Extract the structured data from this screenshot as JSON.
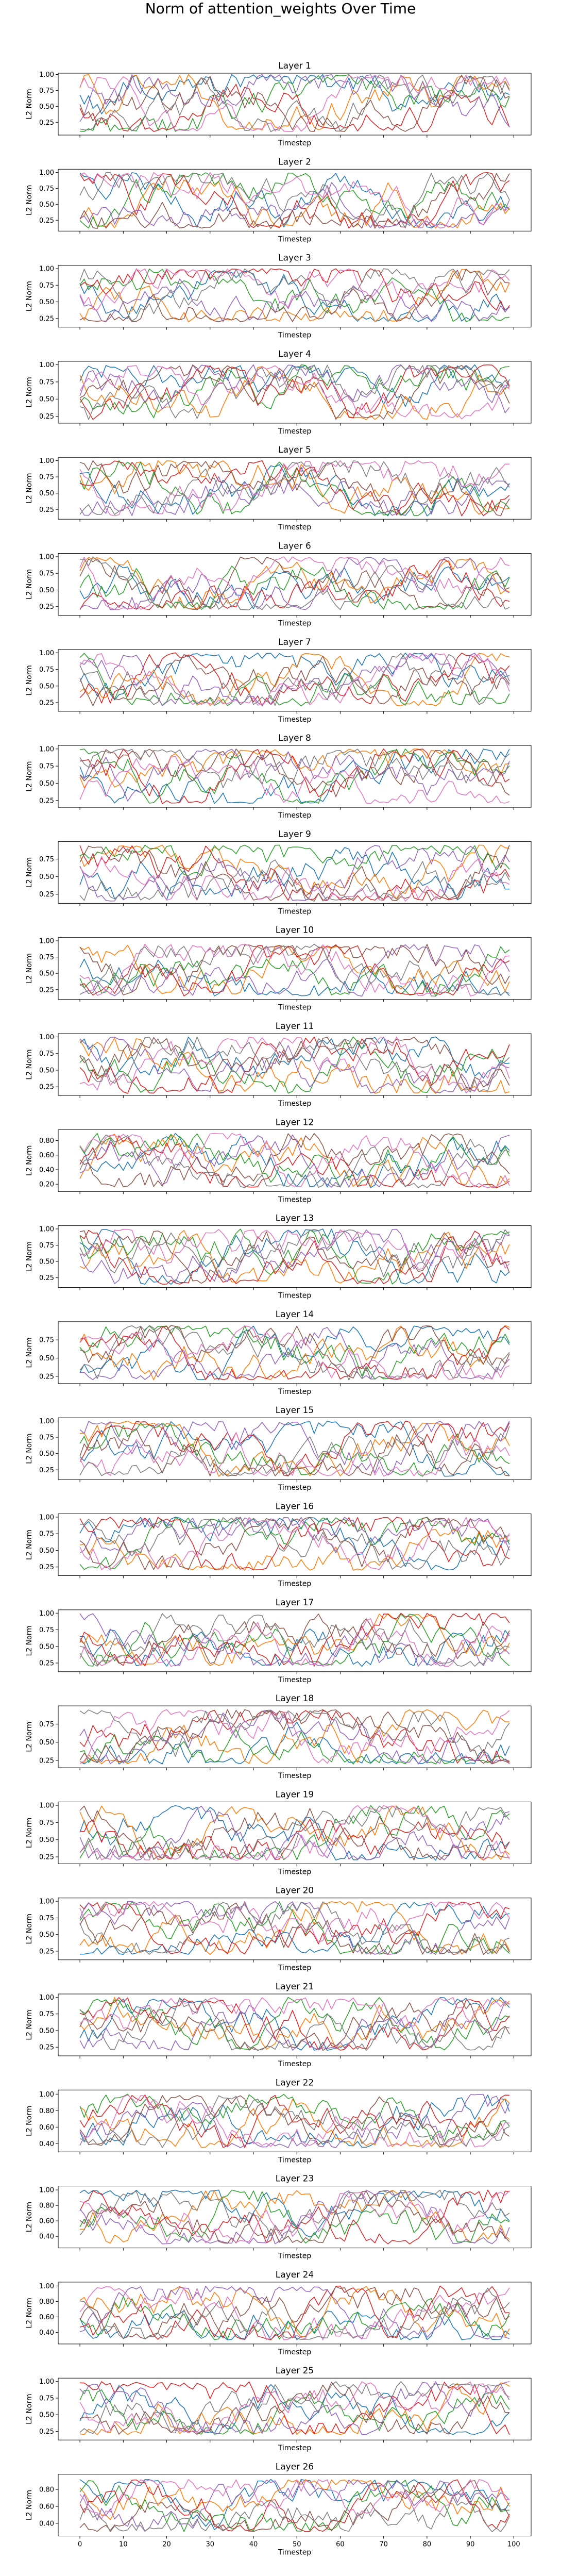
{
  "figure": {
    "title": "Norm of attention_weights Over Time"
  },
  "colors": [
    "#1f77b4",
    "#ff7f0e",
    "#2ca02c",
    "#d62728",
    "#9467bd",
    "#8c564b",
    "#e377c2",
    "#7f7f7f"
  ],
  "chart_data": {
    "type": "line",
    "subplots": 26,
    "series_per_subplot": 8,
    "points_per_series": 100,
    "x_range": [
      0,
      99
    ],
    "xlim": [
      -5,
      104
    ],
    "xticks": [
      0,
      10,
      20,
      30,
      40,
      50,
      60,
      70,
      80,
      90,
      100
    ],
    "xlabel": "Timestep",
    "ylabel": "L2 Norm",
    "panels": [
      {
        "title": "Layer 1",
        "ylim": [
          0.05,
          1.02
        ],
        "yticks": [
          0.25,
          0.5,
          0.75,
          1.0
        ],
        "band": [
          0.1,
          1.0
        ],
        "xlabel": "Timestep"
      },
      {
        "title": "Layer 2",
        "ylim": [
          0.08,
          1.05
        ],
        "yticks": [
          0.25,
          0.5,
          0.75,
          1.0
        ],
        "band": [
          0.12,
          1.0
        ],
        "xlabel": "Timestep"
      },
      {
        "title": "Layer 3",
        "ylim": [
          0.12,
          1.05
        ],
        "yticks": [
          0.25,
          0.5,
          0.75,
          1.0
        ],
        "band": [
          0.2,
          1.0
        ],
        "xlabel": "Timestep"
      },
      {
        "title": "Layer 4",
        "ylim": [
          0.15,
          1.05
        ],
        "yticks": [
          0.25,
          0.5,
          0.75,
          1.0
        ],
        "band": [
          0.2,
          1.0
        ],
        "xlabel": "Timestep"
      },
      {
        "title": "Layer 5",
        "ylim": [
          0.1,
          1.05
        ],
        "yticks": [
          0.25,
          0.5,
          0.75,
          1.0
        ],
        "band": [
          0.15,
          1.0
        ],
        "xlabel": "Timestep"
      },
      {
        "title": "Layer 6",
        "ylim": [
          0.12,
          1.05
        ],
        "yticks": [
          0.25,
          0.5,
          0.75,
          1.0
        ],
        "band": [
          0.2,
          1.0
        ],
        "xlabel": "Timestep"
      },
      {
        "title": "Layer 7",
        "ylim": [
          0.12,
          1.05
        ],
        "yticks": [
          0.25,
          0.5,
          0.75,
          1.0
        ],
        "band": [
          0.2,
          1.0
        ],
        "xlabel": "Timestep"
      },
      {
        "title": "Layer 8",
        "ylim": [
          0.15,
          1.05
        ],
        "yticks": [
          0.25,
          0.5,
          0.75,
          1.0
        ],
        "band": [
          0.2,
          1.0
        ],
        "xlabel": "Timestep"
      },
      {
        "title": "Layer 9",
        "ylim": [
          0.12,
          1.0
        ],
        "yticks": [
          0.25,
          0.5,
          0.75
        ],
        "band": [
          0.15,
          0.95
        ],
        "xlabel": "Timestep"
      },
      {
        "title": "Layer 10",
        "ylim": [
          0.1,
          1.05
        ],
        "yticks": [
          0.25,
          0.5,
          0.75,
          1.0
        ],
        "band": [
          0.15,
          0.95
        ],
        "xlabel": "Timestep"
      },
      {
        "title": "Layer 11",
        "ylim": [
          0.12,
          1.05
        ],
        "yticks": [
          0.25,
          0.5,
          0.75,
          1.0
        ],
        "band": [
          0.15,
          1.0
        ],
        "xlabel": "Timestep"
      },
      {
        "title": "Layer 12",
        "ylim": [
          0.1,
          0.95
        ],
        "yticks": [
          0.2,
          0.4,
          0.6,
          0.8
        ],
        "band": [
          0.15,
          0.9
        ],
        "xlabel": "Timestep"
      },
      {
        "title": "Layer 13",
        "ylim": [
          0.1,
          1.05
        ],
        "yticks": [
          0.25,
          0.5,
          0.75,
          1.0
        ],
        "band": [
          0.15,
          1.0
        ],
        "xlabel": "Timestep"
      },
      {
        "title": "Layer 14",
        "ylim": [
          0.15,
          1.0
        ],
        "yticks": [
          0.25,
          0.5,
          0.75
        ],
        "band": [
          0.2,
          0.95
        ],
        "xlabel": "Timestep"
      },
      {
        "title": "Layer 15",
        "ylim": [
          0.1,
          1.05
        ],
        "yticks": [
          0.25,
          0.5,
          0.75,
          1.0
        ],
        "band": [
          0.15,
          1.0
        ],
        "xlabel": "Timestep"
      },
      {
        "title": "Layer 16",
        "ylim": [
          0.12,
          1.05
        ],
        "yticks": [
          0.25,
          0.5,
          0.75,
          1.0
        ],
        "band": [
          0.2,
          1.0
        ],
        "xlabel": "Timestep"
      },
      {
        "title": "Layer 17",
        "ylim": [
          0.12,
          1.05
        ],
        "yticks": [
          0.25,
          0.5,
          0.75,
          1.0
        ],
        "band": [
          0.2,
          1.0
        ],
        "xlabel": "Timestep"
      },
      {
        "title": "Layer 18",
        "ylim": [
          0.15,
          1.0
        ],
        "yticks": [
          0.25,
          0.5,
          0.75
        ],
        "band": [
          0.2,
          0.95
        ],
        "xlabel": "Timestep"
      },
      {
        "title": "Layer 19",
        "ylim": [
          0.15,
          1.05
        ],
        "yticks": [
          0.25,
          0.5,
          0.75,
          1.0
        ],
        "band": [
          0.2,
          1.0
        ],
        "xlabel": "Timestep"
      },
      {
        "title": "Layer 20",
        "ylim": [
          0.12,
          1.05
        ],
        "yticks": [
          0.25,
          0.5,
          0.75,
          1.0
        ],
        "band": [
          0.2,
          1.0
        ],
        "xlabel": "Timestep"
      },
      {
        "title": "Layer 21",
        "ylim": [
          0.12,
          1.05
        ],
        "yticks": [
          0.25,
          0.5,
          0.75,
          1.0
        ],
        "band": [
          0.2,
          1.0
        ],
        "xlabel": "Timestep"
      },
      {
        "title": "Layer 22",
        "ylim": [
          0.3,
          1.05
        ],
        "yticks": [
          0.4,
          0.6,
          0.8,
          1.0
        ],
        "band": [
          0.35,
          1.0
        ],
        "xlabel": "Timestep"
      },
      {
        "title": "Layer 23",
        "ylim": [
          0.25,
          1.05
        ],
        "yticks": [
          0.4,
          0.6,
          0.8,
          1.0
        ],
        "band": [
          0.3,
          1.0
        ],
        "xlabel": "Timestep"
      },
      {
        "title": "Layer 24",
        "ylim": [
          0.25,
          1.05
        ],
        "yticks": [
          0.4,
          0.6,
          0.8,
          1.0
        ],
        "band": [
          0.3,
          1.0
        ],
        "xlabel": "Timestep"
      },
      {
        "title": "Layer 25",
        "ylim": [
          0.12,
          1.05
        ],
        "yticks": [
          0.25,
          0.5,
          0.75,
          1.0
        ],
        "band": [
          0.2,
          1.0
        ],
        "xlabel": "Timestep"
      },
      {
        "title": "Layer 26",
        "ylim": [
          0.25,
          0.98
        ],
        "yticks": [
          0.4,
          0.6,
          0.8
        ],
        "band": [
          0.3,
          0.92
        ],
        "xlabel": "Timestep"
      }
    ]
  }
}
